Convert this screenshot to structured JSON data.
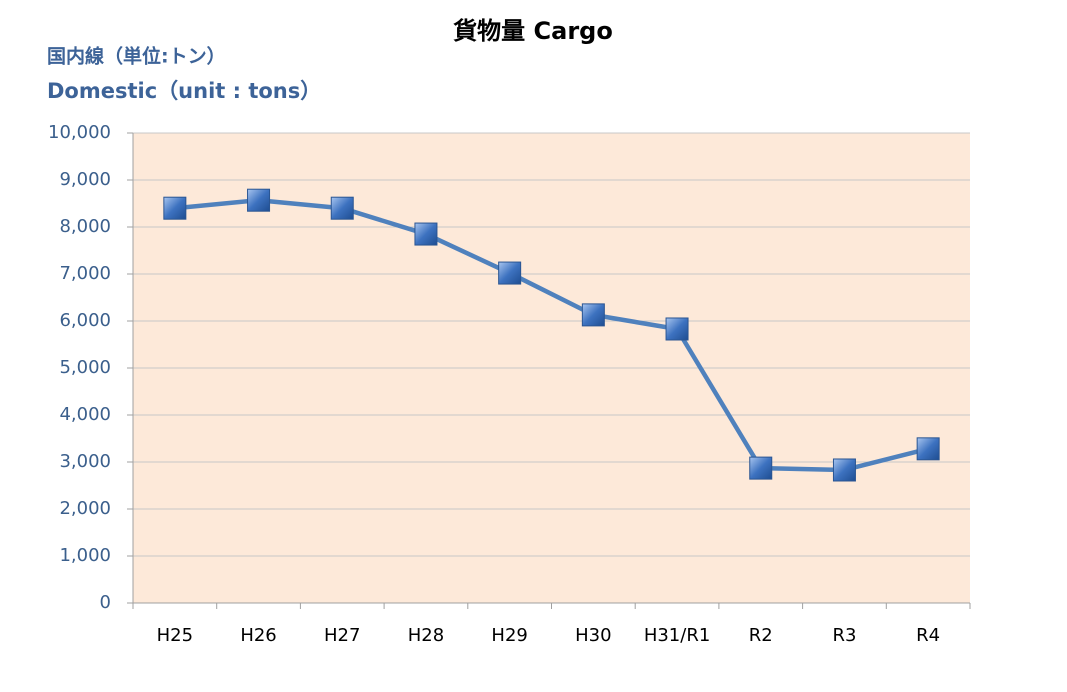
{
  "chart_data": {
    "type": "line",
    "title": "貨物量  Cargo",
    "annotations": [
      "国内線（単位:トン）",
      "Domestic（unit : tons）"
    ],
    "categories": [
      "H25",
      "H26",
      "H27",
      "H28",
      "H29",
      "H30",
      "H31/R1",
      "R2",
      "R3",
      "R4"
    ],
    "series": [
      {
        "name": "Cargo",
        "color": "#4f81bd",
        "values": [
          8400,
          8570,
          8400,
          7850,
          7020,
          6130,
          5830,
          2870,
          2830,
          3280
        ]
      }
    ],
    "ylim": [
      0,
      10000
    ],
    "yticks": [
      0,
      {
        "value": 1000,
        "label": "1,000"
      },
      {
        "value": 2000,
        "label": "2,000"
      },
      {
        "value": 3000,
        "label": "3,000"
      },
      {
        "value": 4000,
        "label": "4,000"
      },
      {
        "value": 5000,
        "label": "5,000"
      },
      {
        "value": 6000,
        "label": "6,000"
      },
      {
        "value": 7000,
        "label": "7,000"
      },
      {
        "value": 8000,
        "label": "8,000"
      },
      {
        "value": 9000,
        "label": "9,000"
      },
      {
        "value": 10000,
        "label": "10,000"
      }
    ],
    "grid": true,
    "plot_background": "#fde9d9"
  }
}
